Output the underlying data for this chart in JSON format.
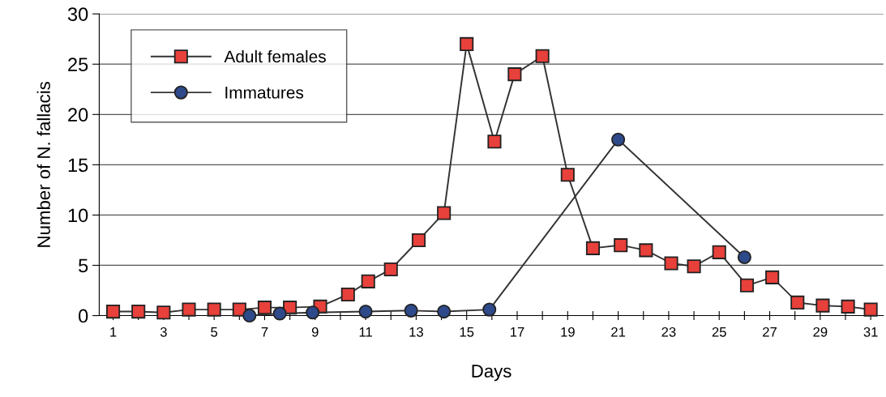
{
  "chart_data": {
    "type": "line",
    "xlabel": "Days",
    "ylabel": "Number of N. fallacis",
    "xlim": [
      0.45,
      31.5
    ],
    "ylim": [
      0,
      30
    ],
    "yticks": [
      0,
      5,
      10,
      15,
      20,
      25,
      30
    ],
    "xticks": [
      1,
      {
        "value": 2,
        "label": null
      },
      3,
      {
        "value": 4,
        "label": null
      },
      5,
      {
        "value": 6,
        "label": null
      },
      7,
      {
        "value": 8,
        "label": null
      },
      9,
      {
        "value": 10,
        "label": null
      },
      11,
      {
        "value": 12,
        "label": null
      },
      13,
      {
        "value": 14,
        "label": null
      },
      15,
      {
        "value": 16,
        "label": null
      },
      17,
      {
        "value": 18,
        "label": null
      },
      19,
      {
        "value": 20,
        "label": null
      },
      21,
      {
        "value": 22,
        "label": null
      },
      23,
      {
        "value": 24,
        "label": null
      },
      25,
      {
        "value": 26,
        "label": null
      },
      27,
      {
        "value": 28,
        "label": null
      },
      29,
      {
        "value": 30,
        "label": null
      },
      31
    ],
    "grid": "y",
    "legend": "top left",
    "series": [
      {
        "name": "Adult females",
        "color": "#e8403a",
        "marker": "square",
        "x": [
          1,
          2,
          3,
          4,
          5,
          6,
          7,
          8,
          9.2,
          10.3,
          11.1,
          12,
          13.1,
          14.1,
          15,
          16.1,
          16.9,
          18,
          19,
          20,
          21.1,
          22.1,
          23.1,
          24,
          25,
          26.1,
          27.1,
          28.1,
          29.1,
          30.1,
          31
        ],
        "values": [
          0.4,
          0.4,
          0.3,
          0.6,
          0.6,
          0.6,
          0.8,
          0.8,
          0.9,
          2.1,
          3.4,
          4.6,
          7.5,
          10.2,
          27,
          17.3,
          24,
          25.8,
          14,
          6.7,
          7,
          6.5,
          5.2,
          4.9,
          6.3,
          3,
          3.8,
          1.3,
          1,
          0.9,
          0.6
        ]
      },
      {
        "name": "Immatures",
        "color": "#2e4a8a",
        "marker": "circle",
        "x": [
          6.4,
          7.6,
          8.9,
          11,
          12.8,
          14.1,
          15.9,
          21,
          26
        ],
        "values": [
          0,
          0.2,
          0.3,
          0.4,
          0.5,
          0.4,
          0.6,
          17.5,
          5.8
        ]
      }
    ]
  }
}
